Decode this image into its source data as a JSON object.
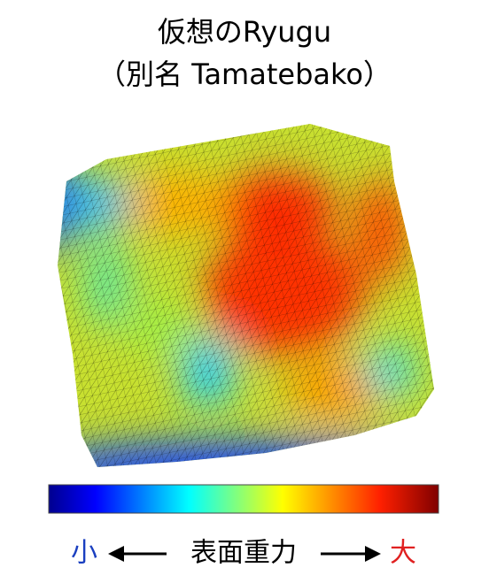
{
  "title": {
    "line1": "仮想のRyugu",
    "line2": "（別名 Tamatebako）"
  },
  "legend": {
    "low": "小",
    "label": "表面重力",
    "high": "大"
  }
}
